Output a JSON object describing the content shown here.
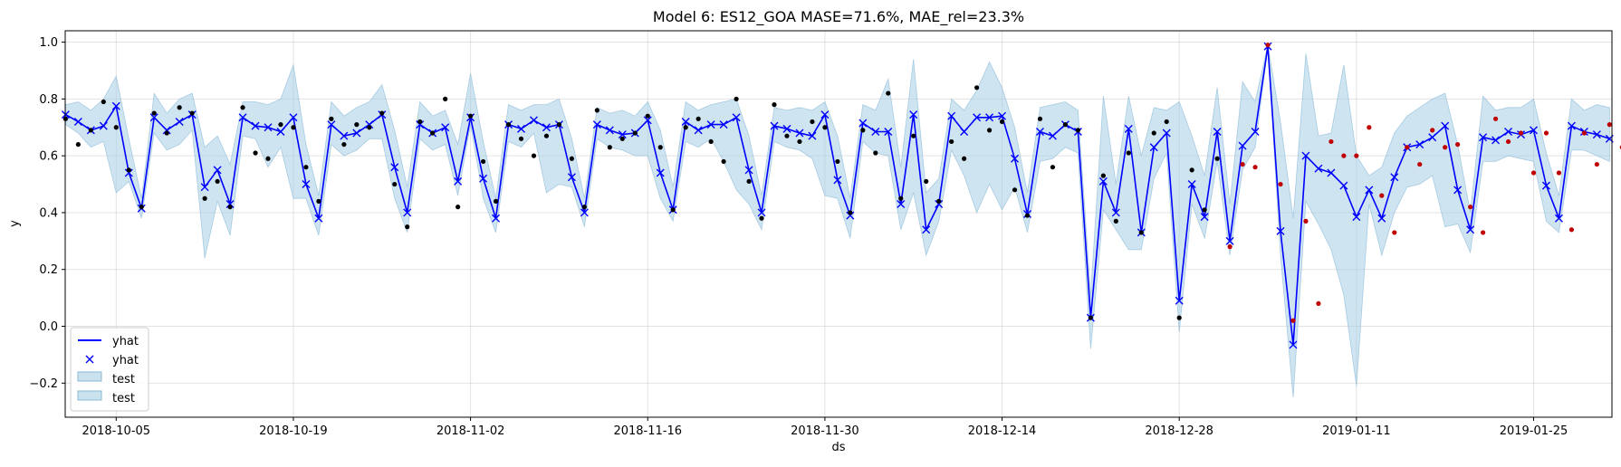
{
  "chart_data": {
    "type": "line",
    "title": "Model 6: ES12_GOA MASE=71.6%, MAE_rel=23.3%",
    "xlabel": "ds",
    "ylabel": "y",
    "x_start": "2018-10-01",
    "ylim": [
      -0.32,
      1.04
    ],
    "yticks": [
      "−0.2",
      "0.0",
      "0.2",
      "0.4",
      "0.6",
      "0.8",
      "1.0"
    ],
    "xticks": [
      "2018-10-05",
      "2018-10-19",
      "2018-11-02",
      "2018-11-16",
      "2018-11-30",
      "2018-12-14",
      "2018-12-28",
      "2019-01-11",
      "2019-01-25"
    ],
    "grid": true,
    "legend_position": "lower-left",
    "legend": [
      "yhat",
      "yhat",
      "test",
      "test"
    ],
    "colors": {
      "yhat_line": "#0000ff",
      "band": "#a6cde3",
      "actual_points": "#000000",
      "test_points": "#c00000"
    },
    "series": [
      {
        "name": "yhat",
        "kind": "line-with-x-markers",
        "values": [
          0.745,
          0.72,
          0.69,
          0.705,
          0.775,
          0.54,
          0.415,
          0.735,
          0.69,
          0.72,
          0.745,
          0.49,
          0.55,
          0.43,
          0.735,
          0.705,
          0.7,
          0.685,
          0.735,
          0.5,
          0.38,
          0.71,
          0.67,
          0.68,
          0.71,
          0.745,
          0.56,
          0.4,
          0.71,
          0.68,
          0.7,
          0.51,
          0.735,
          0.52,
          0.38,
          0.71,
          0.695,
          0.725,
          0.7,
          0.71,
          0.525,
          0.4,
          0.71,
          0.69,
          0.675,
          0.68,
          0.725,
          0.54,
          0.41,
          0.72,
          0.69,
          0.71,
          0.71,
          0.735,
          0.55,
          0.4,
          0.705,
          0.695,
          0.68,
          0.67,
          0.745,
          0.515,
          0.39,
          0.715,
          0.685,
          0.685,
          0.43,
          0.745,
          0.34,
          0.43,
          0.74,
          0.685,
          0.735,
          0.735,
          0.74,
          0.59,
          0.395,
          0.685,
          0.67,
          0.71,
          0.685,
          0.03,
          0.51,
          0.4,
          0.695,
          0.33,
          0.63,
          0.68,
          0.09,
          0.5,
          0.385,
          0.685,
          0.3,
          0.635,
          0.685,
          0.985,
          0.335,
          -0.065,
          0.6,
          0.555,
          0.54,
          0.495,
          0.385,
          0.48,
          0.38,
          0.525,
          0.63,
          0.64,
          0.665,
          0.705,
          0.48,
          0.34,
          0.665,
          0.655,
          0.685,
          0.675,
          0.69,
          0.495,
          0.38,
          0.705,
          0.685,
          0.675,
          0.66
        ]
      },
      {
        "name": "test",
        "kind": "band",
        "upper": [
          0.78,
          0.79,
          0.76,
          0.8,
          0.88,
          0.66,
          0.45,
          0.82,
          0.75,
          0.8,
          0.82,
          0.63,
          0.67,
          0.57,
          0.79,
          0.79,
          0.78,
          0.8,
          0.92,
          0.64,
          0.46,
          0.79,
          0.74,
          0.77,
          0.79,
          0.85,
          0.69,
          0.49,
          0.79,
          0.74,
          0.76,
          0.64,
          0.89,
          0.65,
          0.45,
          0.78,
          0.76,
          0.78,
          0.78,
          0.8,
          0.66,
          0.45,
          0.77,
          0.75,
          0.76,
          0.74,
          0.79,
          0.69,
          0.49,
          0.79,
          0.76,
          0.78,
          0.79,
          0.8,
          0.67,
          0.46,
          0.77,
          0.76,
          0.77,
          0.76,
          0.79,
          0.67,
          0.45,
          0.78,
          0.76,
          0.87,
          0.56,
          0.94,
          0.47,
          0.52,
          0.8,
          0.76,
          0.83,
          0.93,
          0.84,
          0.7,
          0.47,
          0.77,
          0.78,
          0.79,
          0.76,
          0.11,
          0.81,
          0.5,
          0.81,
          0.6,
          0.77,
          0.76,
          0.79,
          0.67,
          0.53,
          0.84,
          0.43,
          0.86,
          0.79,
          0.99,
          0.72,
          0.38,
          0.96,
          0.67,
          0.68,
          0.92,
          0.6,
          0.53,
          0.56,
          0.68,
          0.74,
          0.77,
          0.8,
          0.82,
          0.64,
          0.4,
          0.81,
          0.76,
          0.77,
          0.77,
          0.8,
          0.61,
          0.46,
          0.8,
          0.76,
          0.78,
          0.77
        ],
        "lower": [
          0.71,
          0.68,
          0.63,
          0.65,
          0.47,
          0.51,
          0.38,
          0.68,
          0.62,
          0.64,
          0.69,
          0.24,
          0.44,
          0.32,
          0.67,
          0.66,
          0.56,
          0.63,
          0.45,
          0.45,
          0.32,
          0.64,
          0.6,
          0.62,
          0.66,
          0.66,
          0.45,
          0.33,
          0.66,
          0.62,
          0.64,
          0.46,
          0.71,
          0.45,
          0.33,
          0.65,
          0.63,
          0.68,
          0.47,
          0.5,
          0.49,
          0.35,
          0.66,
          0.63,
          0.62,
          0.6,
          0.6,
          0.45,
          0.37,
          0.65,
          0.63,
          0.66,
          0.58,
          0.48,
          0.43,
          0.34,
          0.65,
          0.63,
          0.62,
          0.59,
          0.46,
          0.45,
          0.31,
          0.65,
          0.61,
          0.6,
          0.34,
          0.47,
          0.25,
          0.37,
          0.62,
          0.53,
          0.4,
          0.5,
          0.41,
          0.49,
          0.33,
          0.58,
          0.59,
          0.63,
          0.61,
          -0.08,
          0.41,
          0.34,
          0.27,
          0.27,
          0.52,
          0.61,
          -0.02,
          0.43,
          0.31,
          0.58,
          0.25,
          0.55,
          0.63,
          0.98,
          0.25,
          -0.25,
          0.44,
          0.36,
          0.27,
          0.11,
          -0.21,
          0.43,
          0.25,
          0.4,
          0.49,
          0.5,
          0.53,
          0.35,
          0.36,
          0.26,
          0.58,
          0.58,
          0.6,
          0.59,
          0.58,
          0.37,
          0.33,
          0.62,
          0.62,
          0.6,
          0.58
        ]
      },
      {
        "name": "actual",
        "kind": "points",
        "values": [
          0.73,
          0.64,
          0.69,
          0.79,
          0.7,
          0.55,
          0.42,
          0.75,
          0.68,
          0.77,
          0.75,
          0.45,
          0.51,
          0.42,
          0.77,
          0.61,
          0.59,
          0.71,
          0.7,
          0.56,
          0.44,
          0.73,
          0.64,
          0.71,
          0.7,
          0.75,
          0.5,
          0.35,
          0.72,
          0.68,
          0.8,
          0.42,
          0.74,
          0.58,
          0.44,
          0.71,
          0.66,
          0.6,
          0.67,
          0.71,
          0.59,
          0.42,
          0.76,
          0.63,
          0.66,
          0.68,
          0.74,
          0.63,
          0.41,
          0.7,
          0.73,
          0.65,
          0.58,
          0.8,
          0.51,
          0.38,
          0.78,
          0.67,
          0.65,
          0.72,
          0.7,
          0.58,
          0.4,
          0.69,
          0.61,
          0.82,
          0.45,
          0.67,
          0.51,
          0.44,
          0.65,
          0.59,
          0.84,
          0.69,
          0.72,
          0.48,
          0.39,
          0.73,
          0.56,
          0.71,
          0.69,
          0.03,
          0.53,
          0.37,
          0.61,
          0.33,
          0.68,
          0.72,
          0.03,
          0.55,
          0.41,
          0.59,
          0.28,
          0.57,
          0.56,
          0.99,
          0.5,
          0.02,
          0.37,
          0.08,
          0.65,
          0.6,
          0.6,
          0.7,
          0.46,
          0.33,
          0.63,
          0.57,
          0.69,
          0.63,
          0.64,
          0.42,
          0.33,
          0.73,
          0.65,
          0.68,
          0.54,
          0.68,
          0.54,
          0.34,
          0.68,
          0.57,
          0.71,
          0.63
        ]
      }
    ],
    "test_point_start_index": 92
  }
}
